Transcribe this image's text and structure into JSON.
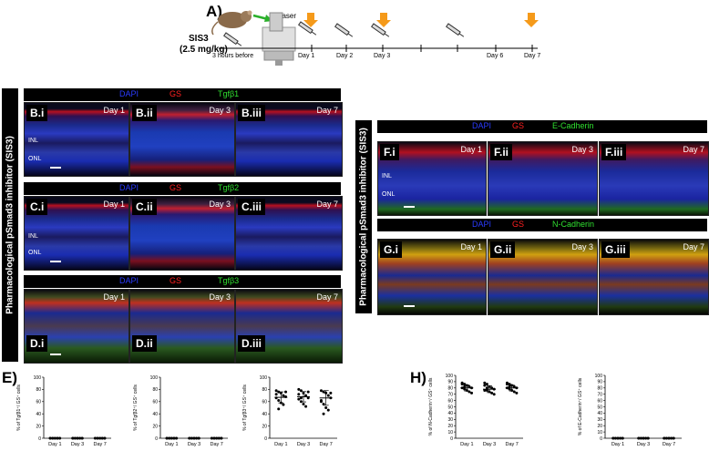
{
  "figure": {
    "panel_a": {
      "label": "A)",
      "drug": "SIS3",
      "dose": "(2.5 mg/kg)",
      "laser": "Laser",
      "pre_label": "3 hours before",
      "days": [
        "Day 1",
        "Day 2",
        "Day 3",
        "Day 6",
        "Day 7"
      ]
    },
    "vertical_title": "Pharmacological pSmad3 inhibitor (SIS3)",
    "stains": {
      "dapi": "DAPI",
      "gs": "GS",
      "tgfb1": "Tgfβ1",
      "tgfb2": "Tgfβ2",
      "tgfb3": "Tgfβ3",
      "ecad": "E-Cadherin",
      "ncad": "N-Cadherin"
    },
    "layers": {
      "inl": "INL",
      "onl": "ONL"
    },
    "rows_left": [
      {
        "panels": [
          {
            "id": "B.i",
            "day": "Day 1"
          },
          {
            "id": "B.ii",
            "day": "Day 3"
          },
          {
            "id": "B.iii",
            "day": "Day 7"
          }
        ]
      },
      {
        "panels": [
          {
            "id": "C.i",
            "day": "Day 1"
          },
          {
            "id": "C.ii",
            "day": "Day 3"
          },
          {
            "id": "C.iii",
            "day": "Day 7"
          }
        ]
      },
      {
        "panels": [
          {
            "id": "D.i",
            "day": "Day 1"
          },
          {
            "id": "D.ii",
            "day": "Day 3"
          },
          {
            "id": "D.iii",
            "day": "Day 7"
          }
        ]
      }
    ],
    "rows_right": [
      {
        "panels": [
          {
            "id": "F.i",
            "day": "Day 1"
          },
          {
            "id": "F.ii",
            "day": "Day 3"
          },
          {
            "id": "F.iii",
            "day": "Day 7"
          }
        ]
      },
      {
        "panels": [
          {
            "id": "G.i",
            "day": "Day 1"
          },
          {
            "id": "G.ii",
            "day": "Day 3"
          },
          {
            "id": "G.iii",
            "day": "Day 7"
          }
        ]
      }
    ],
    "panel_e_label": "E)",
    "panel_h_label": "H)"
  },
  "chart_data": [
    {
      "type": "scatter",
      "panel": "E1",
      "ylabel": "% of Tgfβ1⁺/ GS⁺ cells",
      "categories": [
        "Day 1",
        "Day 3",
        "Day 7"
      ],
      "ylim": [
        0,
        100
      ],
      "yticks": [
        0,
        20,
        40,
        60,
        80,
        100
      ],
      "means": [
        0,
        0,
        0
      ],
      "points": [
        [
          0,
          0,
          0,
          0,
          0,
          0,
          0,
          0,
          0,
          0
        ],
        [
          0,
          0,
          0,
          0,
          0,
          0,
          0,
          0,
          0,
          0
        ],
        [
          0,
          0,
          0,
          0,
          0,
          0,
          0,
          0,
          0,
          0
        ]
      ]
    },
    {
      "type": "scatter",
      "panel": "E2",
      "ylabel": "% of Tgfβ2⁺/ GS⁺ cells",
      "categories": [
        "Day 1",
        "Day 3",
        "Day 7"
      ],
      "ylim": [
        0,
        100
      ],
      "yticks": [
        0,
        20,
        40,
        60,
        80,
        100
      ],
      "means": [
        0,
        0,
        0
      ],
      "points": [
        [
          0,
          0,
          0,
          0,
          0,
          0,
          0,
          0,
          0,
          0
        ],
        [
          0,
          0,
          0,
          0,
          0,
          0,
          0,
          0,
          0,
          0
        ],
        [
          0,
          0,
          0,
          0,
          0,
          0,
          0,
          0,
          0,
          0
        ]
      ]
    },
    {
      "type": "scatter",
      "panel": "E3",
      "ylabel": "% of Tgfβ3⁺/ GS⁺ cells",
      "categories": [
        "Day 1",
        "Day 3",
        "Day 7"
      ],
      "ylim": [
        0,
        100
      ],
      "yticks": [
        0,
        20,
        40,
        60,
        80,
        100
      ],
      "means": [
        67,
        68,
        66
      ],
      "points": [
        [
          78,
          76,
          74,
          70,
          68,
          66,
          62,
          58,
          55,
          76,
          72,
          48
        ],
        [
          80,
          78,
          74,
          70,
          66,
          64,
          60,
          56,
          52,
          76,
          72,
          66
        ],
        [
          78,
          76,
          74,
          70,
          66,
          62,
          56,
          50,
          46,
          74,
          60,
          40
        ]
      ]
    },
    {
      "type": "scatter",
      "panel": "H1",
      "ylabel": "% of N-Cadherin⁺/ GS⁺ cells",
      "categories": [
        "Day 1",
        "Day 3",
        "Day 7"
      ],
      "ylim": [
        0,
        100
      ],
      "yticks": [
        0,
        10,
        20,
        30,
        40,
        50,
        60,
        70,
        80,
        90,
        100
      ],
      "means": [
        80,
        78,
        80
      ],
      "points": [
        [
          88,
          86,
          84,
          82,
          80,
          80,
          78,
          76,
          74,
          72,
          86,
          82
        ],
        [
          88,
          86,
          82,
          80,
          78,
          76,
          76,
          74,
          72,
          70,
          84,
          80
        ],
        [
          88,
          86,
          84,
          82,
          80,
          80,
          78,
          76,
          74,
          72,
          86,
          82
        ]
      ]
    },
    {
      "type": "scatter",
      "panel": "H2",
      "ylabel": "% of E-Cadherin⁺/ GS⁺ cells",
      "categories": [
        "Day 1",
        "Day 3",
        "Day 7"
      ],
      "ylim": [
        0,
        100
      ],
      "yticks": [
        0,
        10,
        20,
        30,
        40,
        50,
        60,
        70,
        80,
        90,
        100
      ],
      "means": [
        0,
        0,
        0
      ],
      "points": [
        [
          0,
          0,
          0,
          0,
          0,
          0,
          0,
          0,
          0,
          0
        ],
        [
          0,
          0,
          0,
          0,
          0,
          0,
          0,
          0,
          0,
          0
        ],
        [
          0,
          0,
          0,
          0,
          0,
          0,
          0,
          0,
          0,
          0
        ]
      ]
    }
  ]
}
